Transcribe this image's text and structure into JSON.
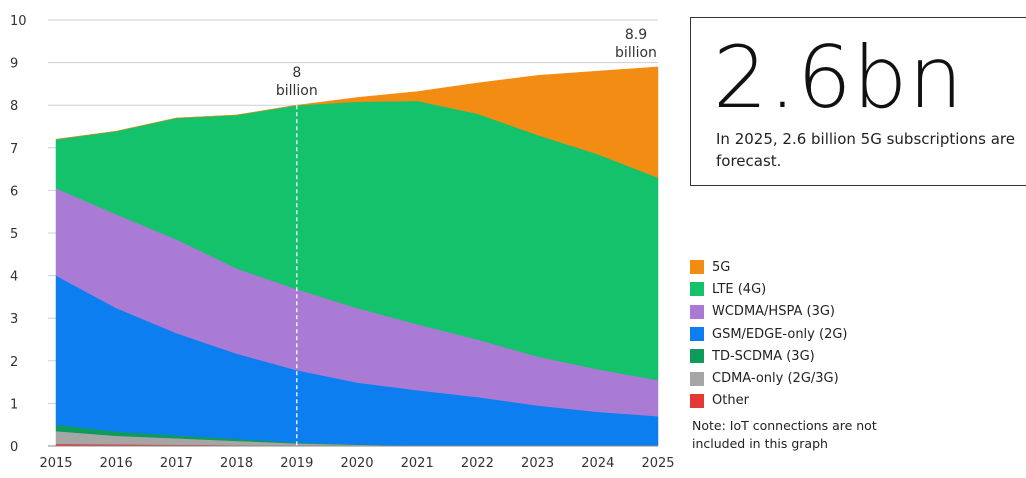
{
  "chart_data": {
    "type": "area",
    "stacked": true,
    "x": [
      2015,
      2016,
      2017,
      2018,
      2019,
      2020,
      2021,
      2022,
      2023,
      2024,
      2025
    ],
    "xticks": [
      "2015",
      "2016",
      "2017",
      "2018",
      "2019",
      "2020",
      "2021",
      "2022",
      "2023",
      "2024",
      "2025"
    ],
    "ylim": [
      0,
      10
    ],
    "yticks": [
      "0",
      "1",
      "2",
      "3",
      "4",
      "5",
      "6",
      "7",
      "8",
      "9",
      "10"
    ],
    "grid": true,
    "series": [
      {
        "name": "Other",
        "color": "#e53935",
        "values": [
          0.05,
          0.04,
          0.03,
          0.02,
          0.01,
          0.01,
          0.0,
          0.0,
          0.0,
          0.0,
          0.0
        ]
      },
      {
        "name": "CDMA-only (2G/3G)",
        "color": "#a6a6a6",
        "values": [
          0.3,
          0.2,
          0.15,
          0.1,
          0.05,
          0.02,
          0.01,
          0.0,
          0.0,
          0.0,
          0.0
        ]
      },
      {
        "name": "TD-SCDMA (3G)",
        "color": "#0e9a5a",
        "values": [
          0.15,
          0.1,
          0.07,
          0.05,
          0.02,
          0.01,
          0.0,
          0.0,
          0.0,
          0.0,
          0.0
        ]
      },
      {
        "name": "GSM/EDGE-only (2G)",
        "color": "#0c7ef0",
        "values": [
          3.5,
          2.9,
          2.4,
          2.0,
          1.7,
          1.45,
          1.3,
          1.15,
          0.95,
          0.8,
          0.7
        ]
      },
      {
        "name": "WCDMA/HSPA (3G)",
        "color": "#a97bd4",
        "values": [
          2.05,
          2.2,
          2.2,
          2.0,
          1.9,
          1.75,
          1.55,
          1.35,
          1.15,
          1.0,
          0.85
        ]
      },
      {
        "name": "LTE (4G)",
        "color": "#13c26b",
        "values": [
          1.15,
          1.95,
          2.85,
          3.6,
          4.32,
          4.84,
          5.24,
          5.3,
          5.2,
          5.05,
          4.75
        ]
      },
      {
        "name": "5G",
        "color": "#f28c13",
        "values": [
          0.0,
          0.0,
          0.0,
          0.0,
          0.0,
          0.1,
          0.22,
          0.72,
          1.4,
          1.95,
          2.6
        ]
      }
    ],
    "annotations": [
      {
        "x": 2019,
        "line1": "8",
        "line2": "billion"
      },
      {
        "x": 2025,
        "line1": "8.9",
        "line2": "billion"
      }
    ],
    "marker_year": 2019
  },
  "kpi": {
    "value": "2.6bn",
    "text": "In 2025, 2.6 billion 5G subscriptions are forecast."
  },
  "legend": {
    "items": [
      {
        "label": "5G",
        "color": "#f28c13"
      },
      {
        "label": "LTE (4G)",
        "color": "#13c26b"
      },
      {
        "label": "WCDMA/HSPA (3G)",
        "color": "#a97bd4"
      },
      {
        "label": "GSM/EDGE-only (2G)",
        "color": "#0c7ef0"
      },
      {
        "label": "TD-SCDMA (3G)",
        "color": "#0e9a5a"
      },
      {
        "label": "CDMA-only (2G/3G)",
        "color": "#a6a6a6"
      },
      {
        "label": "Other",
        "color": "#e53935"
      }
    ]
  },
  "note": "Note: IoT connections are not included in this graph"
}
